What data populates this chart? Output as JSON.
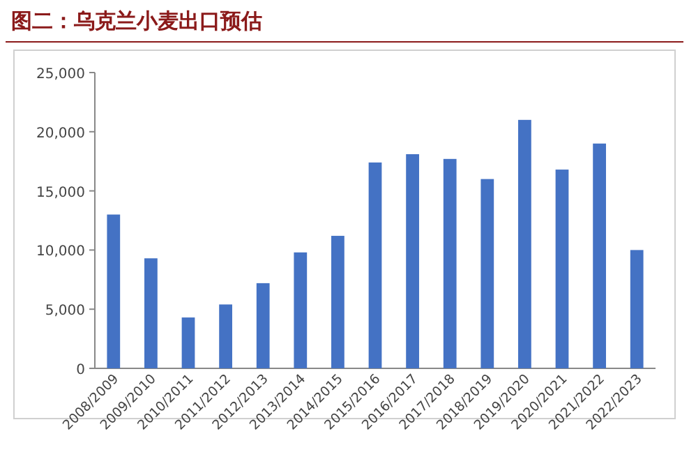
{
  "chart_data": {
    "type": "bar",
    "title": "图二：乌克兰小麦出口预估",
    "categories": [
      "2008/2009",
      "2009/2010",
      "2010/2011",
      "2011/2012",
      "2012/2013",
      "2013/2014",
      "2014/2015",
      "2015/2016",
      "2016/2017",
      "2017/2018",
      "2018/2019",
      "2019/2020",
      "2020/2021",
      "2021/2022",
      "2022/2023"
    ],
    "values": [
      13000,
      9300,
      4300,
      5400,
      7200,
      9800,
      11200,
      17400,
      18100,
      17700,
      16000,
      21000,
      16800,
      19000,
      10000
    ],
    "color": "#4472c4",
    "ylim": [
      0,
      25000
    ],
    "yticks": [
      {
        "value": 0,
        "label": "0"
      },
      {
        "value": 5000,
        "label": "5,000"
      },
      {
        "value": 10000,
        "label": "10,000"
      },
      {
        "value": 15000,
        "label": "15,000"
      },
      {
        "value": 20000,
        "label": "20,000"
      },
      {
        "value": 25000,
        "label": "25,000"
      }
    ],
    "grid": false
  }
}
